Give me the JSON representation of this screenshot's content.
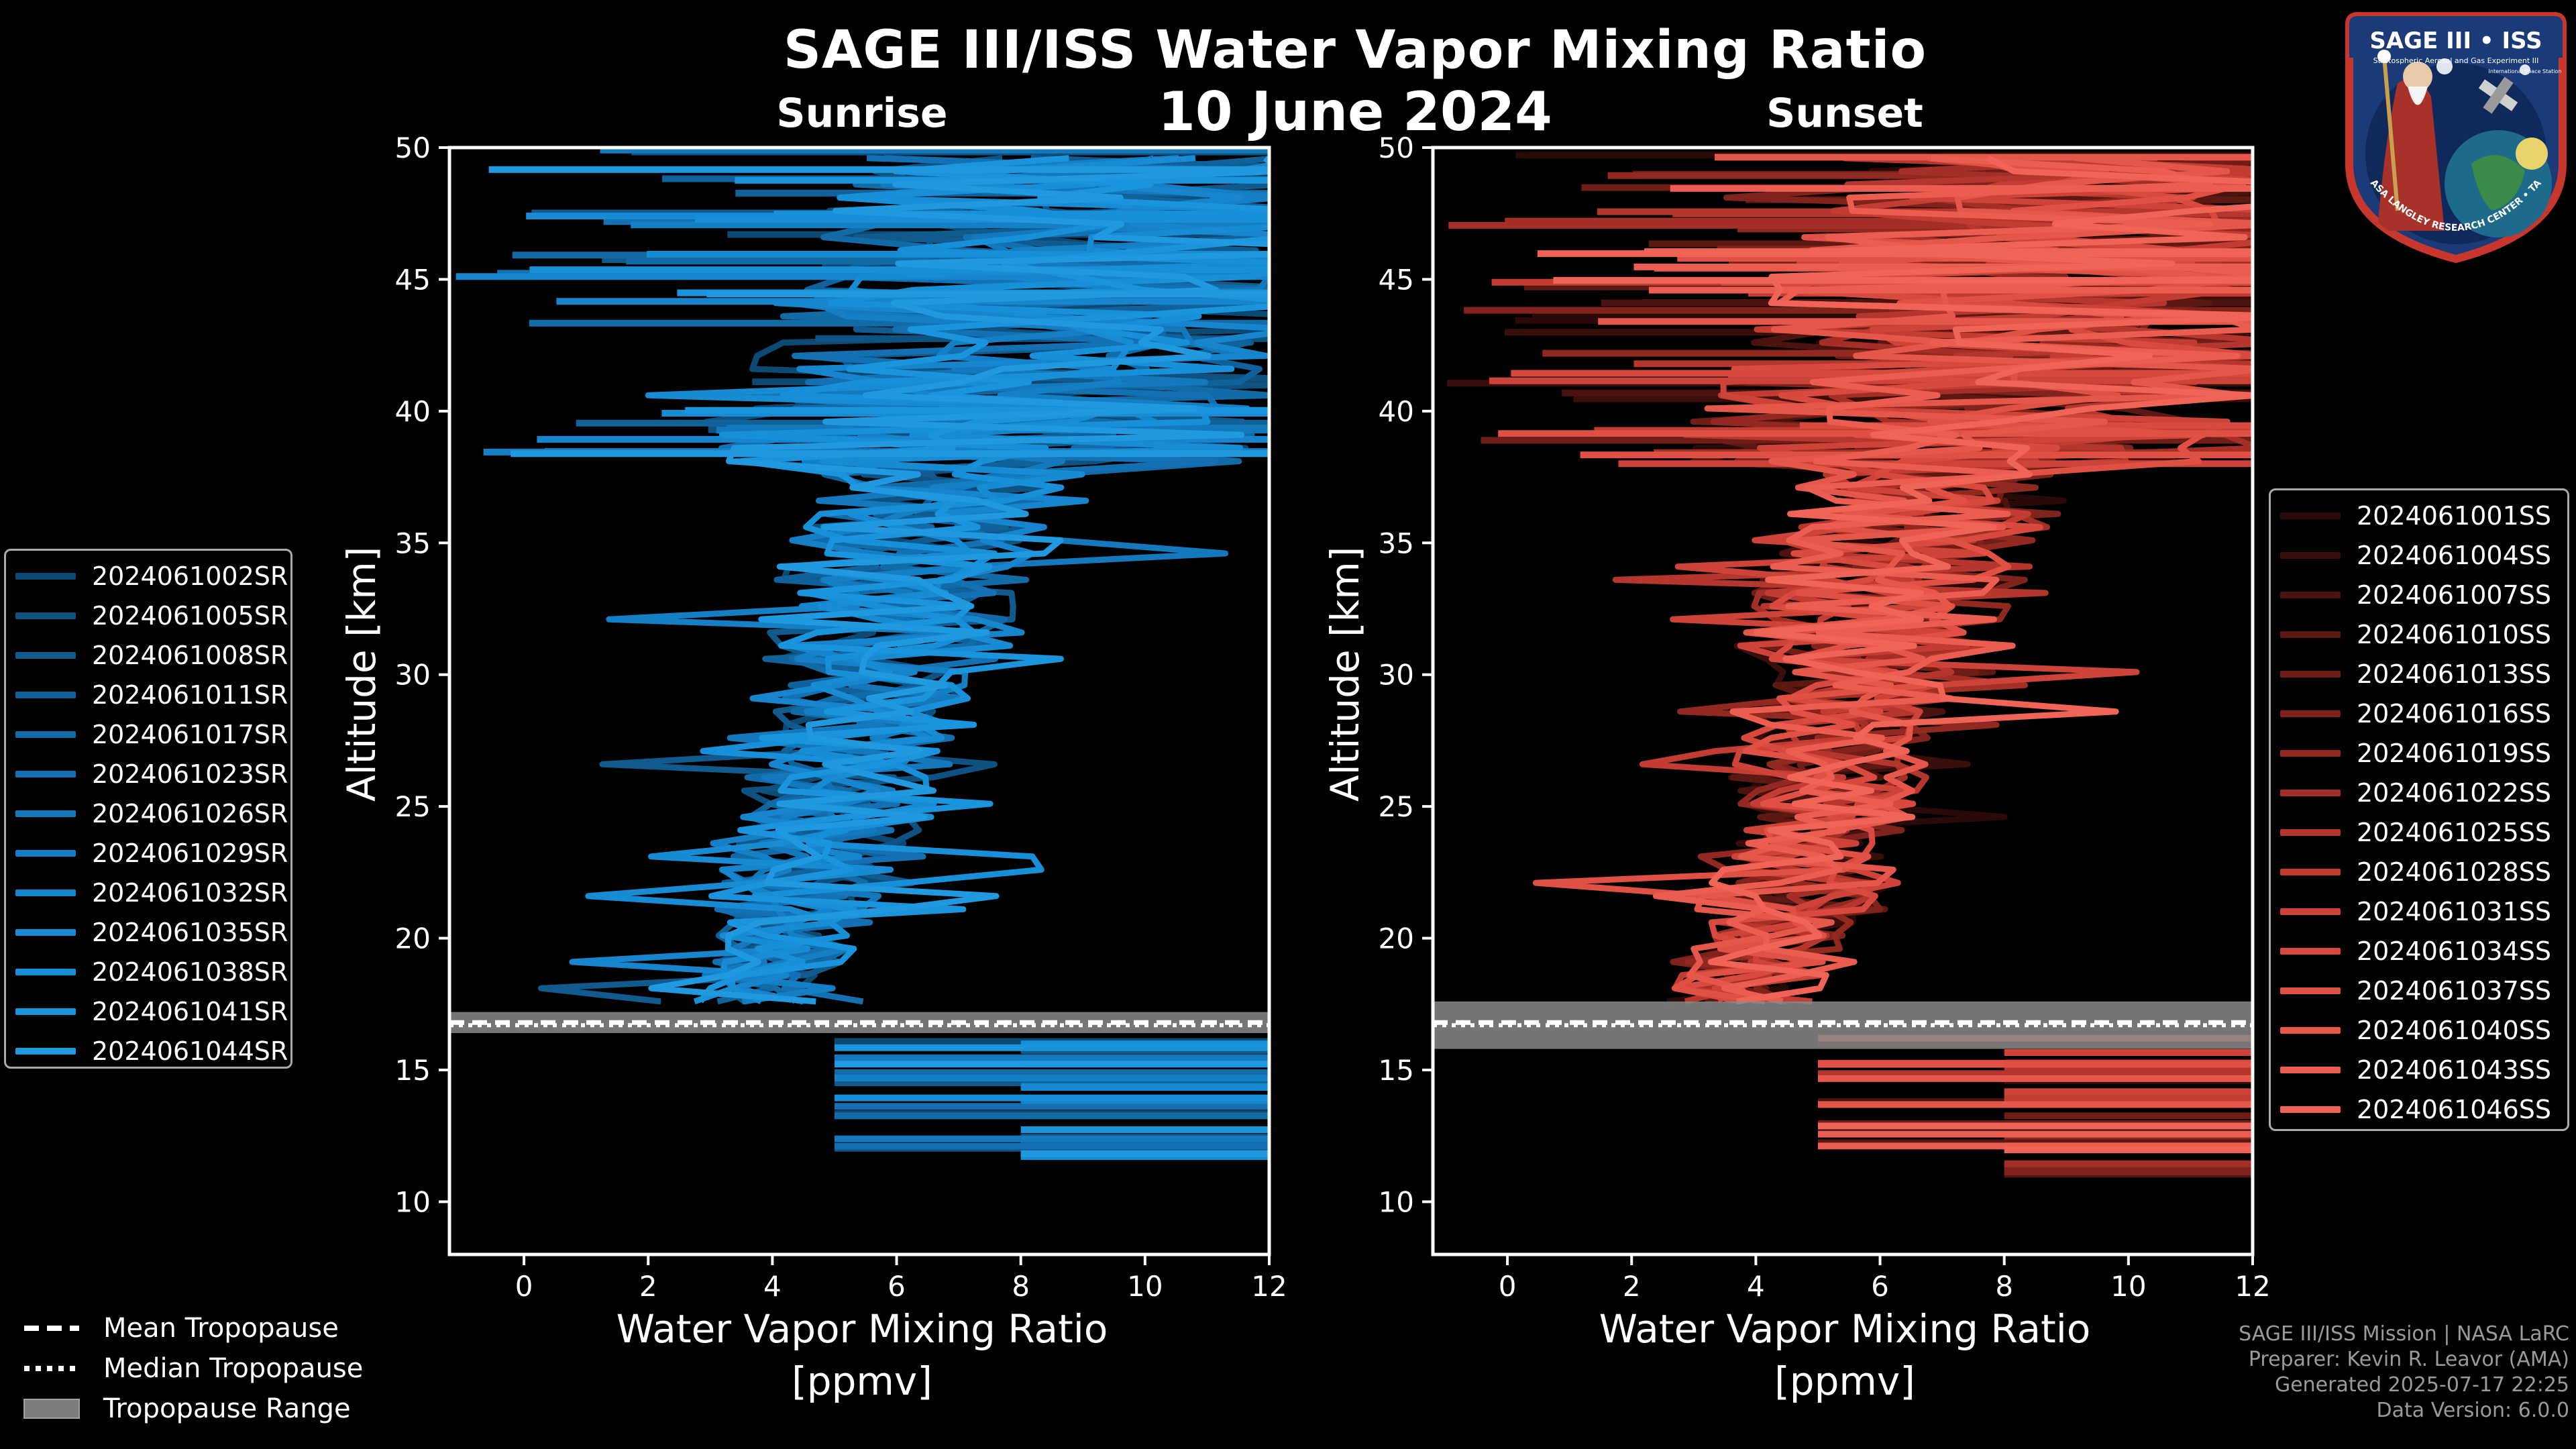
{
  "title": "SAGE III/ISS Water Vapor Mixing Ratio",
  "date": "10 June 2024",
  "logo": {
    "top_text": "SAGE III • ISS",
    "ring_text": "BALL • NASA LANGLEY RESEARCH CENTER • TAS-I • ESA",
    "inner_text_1": "Stratospheric Aerosol and Gas Experiment III",
    "inner_text_2": "International Space Station"
  },
  "chart_data": [
    {
      "type": "line",
      "subtitle": "Sunrise",
      "xlabel": "Water Vapor Mixing Ratio\n[ppmv]",
      "ylabel": "Altitude [km]",
      "xlim": [
        -1.2,
        12
      ],
      "ylim": [
        8,
        50
      ],
      "xticks": [
        "0",
        "2",
        "4",
        "6",
        "8",
        "10",
        "12"
      ],
      "yticks": [
        "10",
        "15",
        "20",
        "25",
        "30",
        "35",
        "40",
        "45",
        "50"
      ],
      "grid": false,
      "legend_position": "left-middle",
      "tropopause": {
        "mean": 16.8,
        "median": 16.7,
        "range": [
          16.4,
          17.2
        ]
      },
      "series": [
        {
          "name": "2024061002SR",
          "color": "#0d4a73"
        },
        {
          "name": "2024061005SR",
          "color": "#0e5282"
        },
        {
          "name": "2024061008SR",
          "color": "#105a8e"
        },
        {
          "name": "2024061011SR",
          "color": "#11629b"
        },
        {
          "name": "2024061017SR",
          "color": "#126aa7"
        },
        {
          "name": "2024061023SR",
          "color": "#1371b3"
        },
        {
          "name": "2024061026SR",
          "color": "#1478bd"
        },
        {
          "name": "2024061029SR",
          "color": "#157fc6"
        },
        {
          "name": "2024061032SR",
          "color": "#1685cd"
        },
        {
          "name": "2024061035SR",
          "color": "#178bd4"
        },
        {
          "name": "2024061038SR",
          "color": "#1890d9"
        },
        {
          "name": "2024061041SR",
          "color": "#1a94dd"
        },
        {
          "name": "2024061044SR",
          "color": "#2199e0"
        }
      ]
    },
    {
      "type": "line",
      "subtitle": "Sunset",
      "xlabel": "Water Vapor Mixing Ratio\n[ppmv]",
      "ylabel": "Altitude [km]",
      "xlim": [
        -1.2,
        12
      ],
      "ylim": [
        8,
        50
      ],
      "xticks": [
        "0",
        "2",
        "4",
        "6",
        "8",
        "10",
        "12"
      ],
      "yticks": [
        "10",
        "15",
        "20",
        "25",
        "30",
        "35",
        "40",
        "45",
        "50"
      ],
      "grid": false,
      "legend_position": "right-middle",
      "tropopause": {
        "mean": 16.8,
        "median": 16.7,
        "range": [
          15.8,
          17.6
        ]
      },
      "series": [
        {
          "name": "2024061001SS",
          "color": "#2a0a08"
        },
        {
          "name": "2024061004SS",
          "color": "#3a0e0b"
        },
        {
          "name": "2024061007SS",
          "color": "#4a130f"
        },
        {
          "name": "2024061010SS",
          "color": "#5c1813"
        },
        {
          "name": "2024061013SS",
          "color": "#6e1d17"
        },
        {
          "name": "2024061016SS",
          "color": "#80231c"
        },
        {
          "name": "2024061019SS",
          "color": "#922921"
        },
        {
          "name": "2024061022SS",
          "color": "#a42f27"
        },
        {
          "name": "2024061025SS",
          "color": "#b4362d"
        },
        {
          "name": "2024061028SS",
          "color": "#c23c33"
        },
        {
          "name": "2024061031SS",
          "color": "#ce4339"
        },
        {
          "name": "2024061034SS",
          "color": "#d84a3f"
        },
        {
          "name": "2024061037SS",
          "color": "#e05045"
        },
        {
          "name": "2024061040SS",
          "color": "#e6574b"
        },
        {
          "name": "2024061043SS",
          "color": "#eb5d51"
        },
        {
          "name": "2024061046SS",
          "color": "#f06357"
        }
      ]
    }
  ],
  "bottom_legend": [
    {
      "label": "Mean Tropopause",
      "style": "dashed"
    },
    {
      "label": "Median Tropopause",
      "style": "dotted"
    },
    {
      "label": "Tropopause Range",
      "style": "patch"
    }
  ],
  "footer": {
    "line1": "SAGE III/ISS Mission | NASA LaRC",
    "line2": "Preparer: Kevin R. Leavor (AMA)",
    "line3": "Generated 2025-07-17 22:25",
    "line4": "Data Version: 6.0.0"
  }
}
